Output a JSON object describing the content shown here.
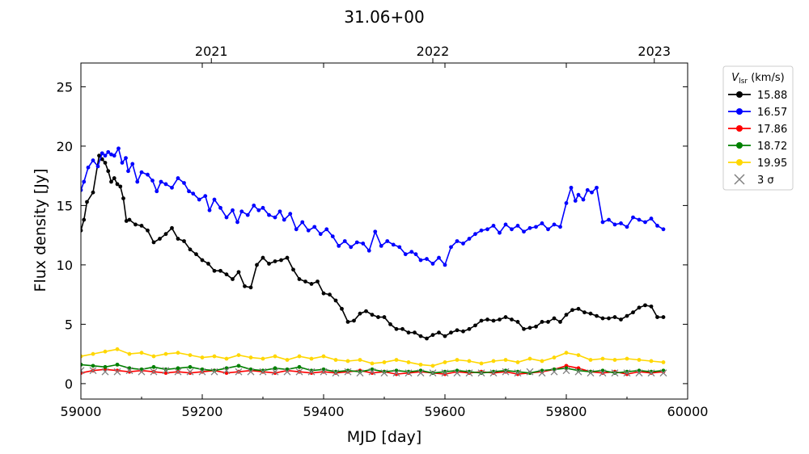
{
  "chart_data": {
    "type": "line",
    "title": "31.06+00",
    "xlabel": "MJD [day]",
    "ylabel": "Flux density [Jy]",
    "xlim": [
      59000,
      60000
    ],
    "ylim": [
      -1.3,
      27
    ],
    "xticks": [
      59000,
      59200,
      59400,
      59600,
      59800,
      60000
    ],
    "yticks": [
      0,
      5,
      10,
      15,
      20,
      25
    ],
    "top_axis": {
      "ticks": [
        {
          "mjd": 59215,
          "label": "2021"
        },
        {
          "mjd": 59580,
          "label": "2022"
        },
        {
          "mjd": 59945,
          "label": "2023"
        }
      ]
    },
    "legend": {
      "title_main": "V",
      "title_sub": "lsr",
      "title_unit": " (km/s)",
      "placement": "outside-right-top",
      "entries": [
        {
          "label": "15.88",
          "color": "#000000",
          "marker": "circle"
        },
        {
          "label": "16.57",
          "color": "#0000ff",
          "marker": "circle"
        },
        {
          "label": "17.86",
          "color": "#ff0000",
          "marker": "circle"
        },
        {
          "label": "18.72",
          "color": "#008000",
          "marker": "circle"
        },
        {
          "label": "19.95",
          "color": "#ffd700",
          "marker": "circle"
        },
        {
          "label": "3 σ",
          "color": "#808080",
          "marker": "x"
        }
      ]
    },
    "series": [
      {
        "name": "15.88",
        "color": "#000000",
        "x": [
          59000,
          59005,
          59010,
          59020,
          59030,
          59035,
          59040,
          59045,
          59050,
          59055,
          59060,
          59065,
          59070,
          59075,
          59080,
          59090,
          59100,
          59110,
          59120,
          59130,
          59140,
          59150,
          59160,
          59170,
          59180,
          59190,
          59200,
          59210,
          59220,
          59230,
          59240,
          59250,
          59260,
          59270,
          59280,
          59290,
          59300,
          59310,
          59320,
          59330,
          59340,
          59350,
          59360,
          59370,
          59380,
          59390,
          59400,
          59410,
          59420,
          59430,
          59440,
          59450,
          59460,
          59470,
          59480,
          59490,
          59500,
          59510,
          59520,
          59530,
          59540,
          59550,
          59560,
          59570,
          59580,
          59590,
          59600,
          59610,
          59620,
          59630,
          59640,
          59650,
          59660,
          59670,
          59680,
          59690,
          59700,
          59710,
          59720,
          59730,
          59740,
          59750,
          59760,
          59770,
          59780,
          59790,
          59800,
          59810,
          59820,
          59830,
          59840,
          59850,
          59860,
          59870,
          59880,
          59890,
          59900,
          59910,
          59920,
          59930,
          59940,
          59950,
          59960
        ],
        "y": [
          12.9,
          13.8,
          15.3,
          16.1,
          19.2,
          18.9,
          18.6,
          17.9,
          17.0,
          17.3,
          16.8,
          16.6,
          15.6,
          13.7,
          13.8,
          13.4,
          13.3,
          12.9,
          11.9,
          12.2,
          12.6,
          13.1,
          12.2,
          12.0,
          11.3,
          10.9,
          10.4,
          10.1,
          9.5,
          9.5,
          9.2,
          8.8,
          9.4,
          8.2,
          8.1,
          10.0,
          10.6,
          10.1,
          10.3,
          10.4,
          10.6,
          9.6,
          8.8,
          8.6,
          8.4,
          8.6,
          7.6,
          7.5,
          7.0,
          6.3,
          5.2,
          5.3,
          5.9,
          6.1,
          5.8,
          5.6,
          5.6,
          5.0,
          4.6,
          4.6,
          4.3,
          4.3,
          4.0,
          3.8,
          4.1,
          4.3,
          4.0,
          4.3,
          4.5,
          4.4,
          4.6,
          4.9,
          5.3,
          5.4,
          5.3,
          5.4,
          5.6,
          5.4,
          5.2,
          4.6,
          4.7,
          4.8,
          5.2,
          5.2,
          5.5,
          5.2,
          5.8,
          6.2,
          6.3,
          6.0,
          5.9,
          5.7,
          5.5,
          5.5,
          5.6,
          5.4,
          5.7,
          6.0,
          6.4,
          6.6,
          6.5,
          5.6,
          5.6
        ]
      },
      {
        "name": "16.57",
        "color": "#0000ff",
        "x": [
          59000,
          59005,
          59012,
          59020,
          59028,
          59035,
          59040,
          59045,
          59050,
          59055,
          59062,
          59068,
          59074,
          59078,
          59085,
          59093,
          59100,
          59110,
          59118,
          59125,
          59132,
          59140,
          59150,
          59160,
          59170,
          59178,
          59185,
          59195,
          59205,
          59212,
          59220,
          59230,
          59240,
          59250,
          59258,
          59265,
          59275,
          59285,
          59293,
          59300,
          59310,
          59320,
          59328,
          59335,
          59345,
          59355,
          59365,
          59375,
          59385,
          59395,
          59405,
          59415,
          59425,
          59435,
          59445,
          59455,
          59465,
          59475,
          59485,
          59495,
          59505,
          59515,
          59525,
          59535,
          59545,
          59552,
          59560,
          59570,
          59580,
          59590,
          59600,
          59610,
          59620,
          59630,
          59640,
          59650,
          59660,
          59670,
          59680,
          59690,
          59700,
          59710,
          59720,
          59730,
          59740,
          59750,
          59760,
          59770,
          59780,
          59790,
          59800,
          59808,
          59815,
          59820,
          59828,
          59835,
          59842,
          59850,
          59860,
          59870,
          59880,
          59890,
          59900,
          59910,
          59920,
          59930,
          59940,
          59950,
          59960
        ],
        "y": [
          16.3,
          17.0,
          18.2,
          18.8,
          18.3,
          19.4,
          19.2,
          19.5,
          19.3,
          19.2,
          19.8,
          18.6,
          19.0,
          17.9,
          18.5,
          17.0,
          17.8,
          17.6,
          17.1,
          16.2,
          17.0,
          16.8,
          16.5,
          17.3,
          16.9,
          16.2,
          16.0,
          15.5,
          15.8,
          14.6,
          15.5,
          14.8,
          14.0,
          14.6,
          13.6,
          14.5,
          14.2,
          15.0,
          14.6,
          14.8,
          14.2,
          14.0,
          14.5,
          13.8,
          14.3,
          13.0,
          13.6,
          12.9,
          13.2,
          12.6,
          13.0,
          12.4,
          11.6,
          12.0,
          11.5,
          11.9,
          11.8,
          11.2,
          12.8,
          11.6,
          12.0,
          11.7,
          11.5,
          10.9,
          11.1,
          10.9,
          10.4,
          10.5,
          10.1,
          10.6,
          10.0,
          11.5,
          12.0,
          11.8,
          12.2,
          12.6,
          12.9,
          13.0,
          13.3,
          12.7,
          13.4,
          13.0,
          13.3,
          12.8,
          13.1,
          13.2,
          13.5,
          13.0,
          13.4,
          13.2,
          15.2,
          16.5,
          15.4,
          15.9,
          15.5,
          16.3,
          16.1,
          16.5,
          13.6,
          13.8,
          13.4,
          13.5,
          13.2,
          14.0,
          13.8,
          13.6,
          13.9,
          13.3,
          13.0
        ]
      },
      {
        "name": "17.86",
        "color": "#ff0000",
        "x": [
          59000,
          59020,
          59040,
          59060,
          59080,
          59100,
          59120,
          59140,
          59160,
          59180,
          59200,
          59220,
          59240,
          59260,
          59280,
          59300,
          59320,
          59340,
          59360,
          59380,
          59400,
          59420,
          59440,
          59460,
          59480,
          59500,
          59520,
          59540,
          59560,
          59580,
          59600,
          59620,
          59640,
          59660,
          59680,
          59700,
          59720,
          59740,
          59760,
          59780,
          59800,
          59820,
          59840,
          59860,
          59880,
          59900,
          59920,
          59940,
          59960
        ],
        "y": [
          0.9,
          1.1,
          1.2,
          1.1,
          1.0,
          1.1,
          1.0,
          0.9,
          1.0,
          0.9,
          1.0,
          1.1,
          0.9,
          1.0,
          1.1,
          1.0,
          0.9,
          1.1,
          1.0,
          0.9,
          1.0,
          0.9,
          1.0,
          1.1,
          0.9,
          1.0,
          0.8,
          0.9,
          1.0,
          0.9,
          0.8,
          1.0,
          0.9,
          1.0,
          0.9,
          1.0,
          0.8,
          0.9,
          1.0,
          1.2,
          1.5,
          1.3,
          1.0,
          0.9,
          1.0,
          0.8,
          1.0,
          0.9,
          1.0
        ]
      },
      {
        "name": "18.72",
        "color": "#008000",
        "x": [
          59000,
          59020,
          59040,
          59060,
          59080,
          59100,
          59120,
          59140,
          59160,
          59180,
          59200,
          59220,
          59240,
          59260,
          59280,
          59300,
          59320,
          59340,
          59360,
          59380,
          59400,
          59420,
          59440,
          59460,
          59480,
          59500,
          59520,
          59540,
          59560,
          59580,
          59600,
          59620,
          59640,
          59660,
          59680,
          59700,
          59720,
          59740,
          59760,
          59780,
          59800,
          59820,
          59840,
          59860,
          59880,
          59900,
          59920,
          59940,
          59960
        ],
        "y": [
          1.6,
          1.5,
          1.4,
          1.6,
          1.3,
          1.2,
          1.4,
          1.2,
          1.3,
          1.4,
          1.2,
          1.1,
          1.3,
          1.5,
          1.2,
          1.1,
          1.3,
          1.2,
          1.4,
          1.1,
          1.2,
          1.0,
          1.1,
          1.0,
          1.2,
          1.0,
          1.1,
          1.0,
          1.1,
          0.9,
          1.0,
          1.1,
          1.0,
          0.9,
          1.0,
          1.1,
          1.0,
          0.9,
          1.1,
          1.2,
          1.3,
          1.1,
          1.0,
          1.1,
          0.9,
          1.0,
          1.1,
          1.0,
          1.1
        ]
      },
      {
        "name": "19.95",
        "color": "#ffd700",
        "x": [
          59000,
          59020,
          59040,
          59060,
          59080,
          59100,
          59120,
          59140,
          59160,
          59180,
          59200,
          59220,
          59240,
          59260,
          59280,
          59300,
          59320,
          59340,
          59360,
          59380,
          59400,
          59420,
          59440,
          59460,
          59480,
          59500,
          59520,
          59540,
          59560,
          59580,
          59600,
          59620,
          59640,
          59660,
          59680,
          59700,
          59720,
          59740,
          59760,
          59780,
          59800,
          59820,
          59840,
          59860,
          59880,
          59900,
          59920,
          59940,
          59960
        ],
        "y": [
          2.3,
          2.5,
          2.7,
          2.9,
          2.5,
          2.6,
          2.3,
          2.5,
          2.6,
          2.4,
          2.2,
          2.3,
          2.1,
          2.4,
          2.2,
          2.1,
          2.3,
          2.0,
          2.3,
          2.1,
          2.3,
          2.0,
          1.9,
          2.0,
          1.7,
          1.8,
          2.0,
          1.8,
          1.6,
          1.5,
          1.8,
          2.0,
          1.9,
          1.7,
          1.9,
          2.0,
          1.8,
          2.1,
          1.9,
          2.2,
          2.6,
          2.4,
          2.0,
          2.1,
          2.0,
          2.1,
          2.0,
          1.9,
          1.8
        ]
      },
      {
        "name": "3 σ",
        "color": "#808080",
        "marker": "x",
        "x": [
          59000,
          59020,
          59040,
          59060,
          59080,
          59100,
          59120,
          59140,
          59160,
          59180,
          59200,
          59220,
          59240,
          59260,
          59280,
          59300,
          59320,
          59340,
          59360,
          59380,
          59400,
          59420,
          59440,
          59460,
          59480,
          59500,
          59520,
          59540,
          59560,
          59580,
          59600,
          59620,
          59640,
          59660,
          59680,
          59700,
          59720,
          59740,
          59760,
          59780,
          59800,
          59820,
          59840,
          59860,
          59880,
          59900,
          59920,
          59940,
          59960
        ],
        "y": [
          1.1,
          1.1,
          1.0,
          1.0,
          1.1,
          1.0,
          1.0,
          1.1,
          1.0,
          1.0,
          1.0,
          1.0,
          1.1,
          1.0,
          1.0,
          1.0,
          1.0,
          1.0,
          1.0,
          1.0,
          1.0,
          0.9,
          1.0,
          0.9,
          1.0,
          0.9,
          0.9,
          0.9,
          0.9,
          0.9,
          0.9,
          0.9,
          0.9,
          0.9,
          0.9,
          1.0,
          0.9,
          1.0,
          0.9,
          1.0,
          1.1,
          1.0,
          0.9,
          0.9,
          0.9,
          0.9,
          0.9,
          0.9,
          0.9
        ]
      }
    ]
  }
}
